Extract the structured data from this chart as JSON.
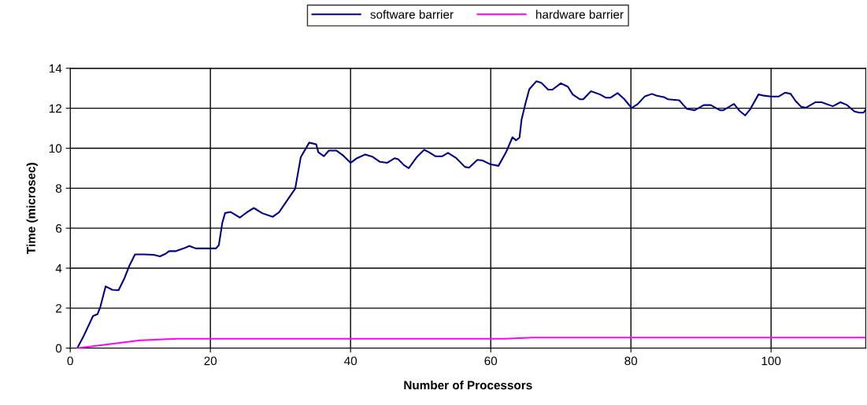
{
  "chart_data": {
    "type": "line",
    "xlabel": "Number of Processors",
    "ylabel": "Time (microsec)",
    "xlim": [
      0,
      113.5
    ],
    "xticks": [
      0,
      20,
      40,
      60,
      80,
      100
    ],
    "ylim": [
      0,
      14
    ],
    "yticks": [
      0,
      2,
      4,
      6,
      8,
      10,
      12,
      14
    ],
    "grid": true,
    "legend": "top",
    "marker": "none",
    "line_style": "solid",
    "series": [
      {
        "name": "software barrier",
        "color": "#000080",
        "x": [
          1,
          1.95,
          3.26,
          3.9,
          4.3,
          5.05,
          6.0,
          6.9,
          7.75,
          8.5,
          9.25,
          10.5,
          11.9,
          12.8,
          13.6,
          14.1,
          15.0,
          16.2,
          17.0,
          17.9,
          20.8,
          21.2,
          21.7,
          22.1,
          22.9,
          24.2,
          25.3,
          26.2,
          27.4,
          28.9,
          29.8,
          32.1,
          32.9,
          34.1,
          35.1,
          35.4,
          36.2,
          36.9,
          38.0,
          39.0,
          40.0,
          40.9,
          42.1,
          43.1,
          44.2,
          45.2,
          46.3,
          46.8,
          47.6,
          48.3,
          49.5,
          50.5,
          51.1,
          52.1,
          53.1,
          53.9,
          55.1,
          56.3,
          56.9,
          58.1,
          58.8,
          60.0,
          61.1,
          62.2,
          63.1,
          63.6,
          64.1,
          64.4,
          65.0,
          65.5,
          66.5,
          67.2,
          68.2,
          68.8,
          70.0,
          71.0,
          71.7,
          72.7,
          73.2,
          74.3,
          75.6,
          76.4,
          77.1,
          78.1,
          79.0,
          80.1,
          81.0,
          82.0,
          83.0,
          83.7,
          84.7,
          85.3,
          86.9,
          87.5,
          88.0,
          89.1,
          90.4,
          91.4,
          92.7,
          93.2,
          94.7,
          95.5,
          96.3,
          97.0,
          98.2,
          99.0,
          100.0,
          101.1,
          102.0,
          102.8,
          103.5,
          104.3,
          105.0,
          106.3,
          107.2,
          108.8,
          109.9,
          110.8,
          111.9,
          112.6,
          113.2,
          113.5
        ],
        "values": [
          0,
          0.63,
          1.61,
          1.7,
          2.07,
          3.09,
          2.92,
          2.9,
          3.51,
          4.17,
          4.69,
          4.69,
          4.67,
          4.59,
          4.72,
          4.85,
          4.85,
          4.99,
          5.11,
          4.99,
          4.99,
          5.15,
          6.27,
          6.76,
          6.81,
          6.53,
          6.82,
          7.01,
          6.75,
          6.57,
          6.8,
          7.98,
          9.56,
          10.28,
          10.2,
          9.8,
          9.6,
          9.88,
          9.88,
          9.62,
          9.27,
          9.5,
          9.69,
          9.58,
          9.32,
          9.27,
          9.5,
          9.45,
          9.16,
          9.0,
          9.58,
          9.92,
          9.82,
          9.6,
          9.6,
          9.77,
          9.5,
          9.07,
          9.03,
          9.42,
          9.39,
          9.19,
          9.12,
          9.81,
          10.55,
          10.4,
          10.53,
          11.44,
          12.3,
          12.95,
          13.35,
          13.28,
          12.93,
          12.93,
          13.25,
          13.08,
          12.69,
          12.45,
          12.45,
          12.85,
          12.69,
          12.53,
          12.53,
          12.76,
          12.48,
          12.01,
          12.22,
          12.6,
          12.72,
          12.63,
          12.56,
          12.45,
          12.4,
          12.16,
          11.97,
          11.9,
          12.16,
          12.16,
          11.9,
          11.9,
          12.22,
          11.87,
          11.64,
          11.94,
          12.69,
          12.63,
          12.59,
          12.59,
          12.78,
          12.72,
          12.36,
          12.07,
          12.03,
          12.3,
          12.3,
          12.1,
          12.3,
          12.17,
          11.84,
          11.78,
          11.78,
          11.93
        ]
      },
      {
        "name": "hardware barrier",
        "color": "#ff00ff",
        "x": [
          1,
          10,
          15.2,
          62,
          66,
          113.5
        ],
        "values": [
          0,
          0.39,
          0.47,
          0.47,
          0.53,
          0.53
        ]
      }
    ]
  }
}
